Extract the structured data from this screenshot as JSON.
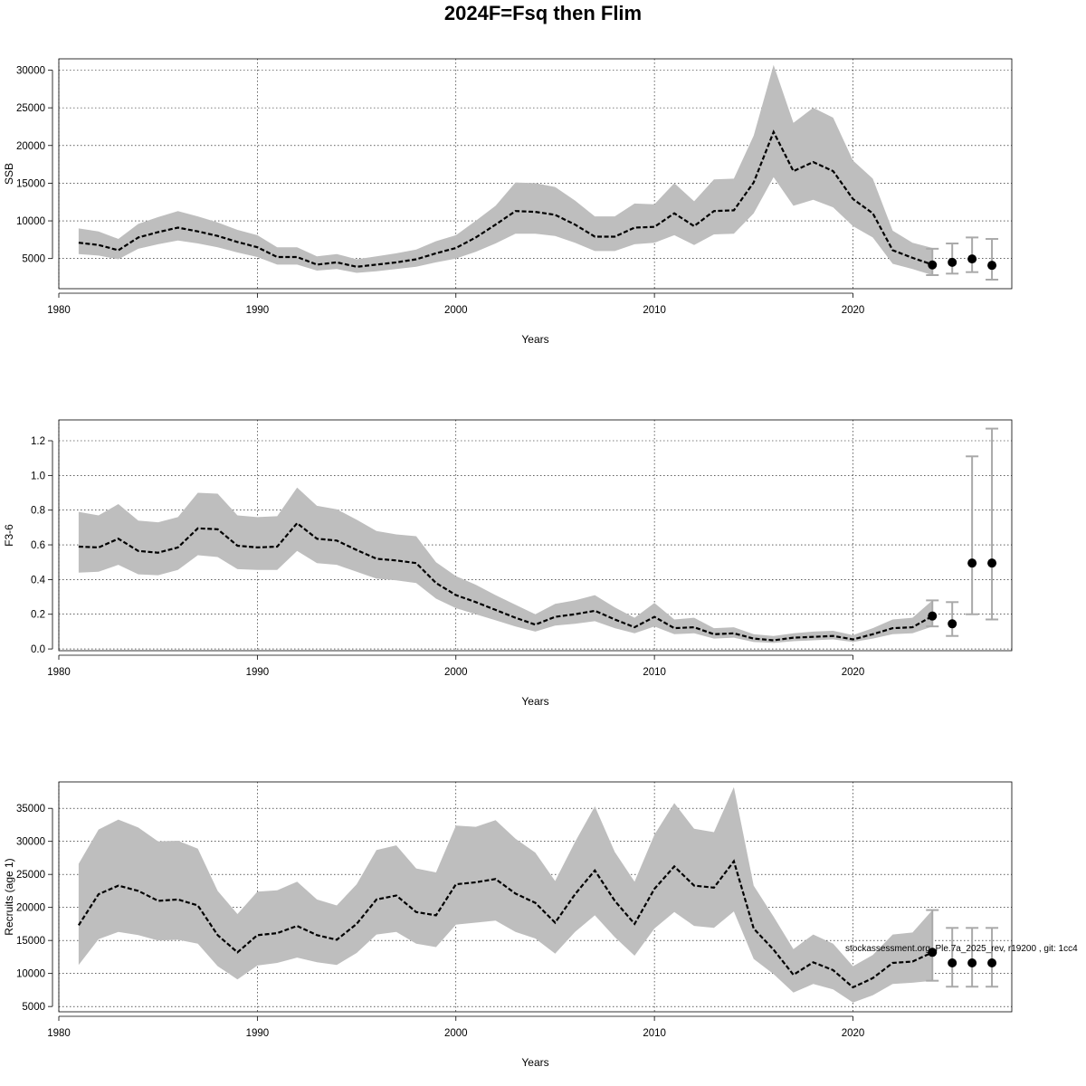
{
  "title": "2024F=Fsq then Flim",
  "footnote": "stockassessment.org, Ple.7a_2025_rev, r19200 , git: 1cc4",
  "chart_data": [
    {
      "type": "line",
      "ylabel": "SSB",
      "xlabel": "Years",
      "xlim": [
        1980,
        2028
      ],
      "ylim": [
        1000,
        31500
      ],
      "xticks": [
        1980,
        1990,
        2000,
        2010,
        2020
      ],
      "yticks": [
        5000,
        10000,
        15000,
        20000,
        25000,
        30000
      ],
      "grid": true,
      "x": [
        1981,
        1982,
        1983,
        1984,
        1985,
        1986,
        1987,
        1988,
        1989,
        1990,
        1991,
        1992,
        1993,
        1994,
        1995,
        1996,
        1997,
        1998,
        1999,
        2000,
        2001,
        2002,
        2003,
        2004,
        2005,
        2006,
        2007,
        2008,
        2009,
        2010,
        2011,
        2012,
        2013,
        2014,
        2015,
        2016,
        2017,
        2018,
        2019,
        2020,
        2021,
        2022,
        2023,
        2024
      ],
      "estimate": [
        7100,
        6800,
        6100,
        7800,
        8500,
        9100,
        8600,
        8000,
        7200,
        6500,
        5200,
        5200,
        4200,
        4500,
        3900,
        4200,
        4500,
        4900,
        5700,
        6400,
        7800,
        9500,
        11300,
        11200,
        10800,
        9500,
        7900,
        7900,
        9100,
        9200,
        11000,
        9300,
        11300,
        11400,
        15100,
        21800,
        16600,
        17800,
        16600,
        12900,
        11000,
        6100,
        5100,
        4200
      ],
      "lower": [
        5600,
        5400,
        4900,
        6300,
        6900,
        7400,
        7000,
        6500,
        5800,
        5200,
        4200,
        4200,
        3400,
        3600,
        3100,
        3300,
        3600,
        3900,
        4500,
        5000,
        5900,
        7000,
        8300,
        8300,
        8000,
        7100,
        6000,
        6000,
        6900,
        7100,
        8100,
        6800,
        8200,
        8300,
        11000,
        15800,
        12000,
        12800,
        11800,
        9300,
        7800,
        4300,
        3600,
        2800
      ],
      "upper": [
        9000,
        8600,
        7600,
        9600,
        10500,
        11300,
        10600,
        9800,
        8800,
        8100,
        6500,
        6500,
        5300,
        5600,
        4900,
        5300,
        5700,
        6200,
        7300,
        8100,
        10000,
        12000,
        15100,
        15000,
        14500,
        12700,
        10600,
        10600,
        12300,
        12200,
        15000,
        12600,
        15500,
        15600,
        21300,
        30700,
        23000,
        25000,
        23700,
        18000,
        15600,
        8700,
        7100,
        6400
      ],
      "forecast": {
        "x": [
          2024,
          2025,
          2026,
          2027
        ],
        "median": [
          4150,
          4500,
          4950,
          4100
        ],
        "low": [
          2800,
          3000,
          3200,
          2200
        ],
        "high": [
          6300,
          7000,
          7800,
          7600
        ]
      }
    },
    {
      "type": "line",
      "ylabel": "F3-6",
      "xlabel": "Years",
      "xlim": [
        1980,
        2028
      ],
      "ylim": [
        -0.01,
        1.32
      ],
      "xticks": [
        1980,
        1990,
        2000,
        2010,
        2020
      ],
      "yticks": [
        0.0,
        0.2,
        0.4,
        0.6,
        0.8,
        1.0,
        1.2
      ],
      "yticklabels": [
        "0.0",
        "0.2",
        "0.4",
        "0.6",
        "0.8",
        "1.0",
        "1.2"
      ],
      "grid": true,
      "x": [
        1981,
        1982,
        1983,
        1984,
        1985,
        1986,
        1987,
        1988,
        1989,
        1990,
        1991,
        1992,
        1993,
        1994,
        1995,
        1996,
        1997,
        1998,
        1999,
        2000,
        2001,
        2002,
        2003,
        2004,
        2005,
        2006,
        2007,
        2008,
        2009,
        2010,
        2011,
        2012,
        2013,
        2014,
        2015,
        2016,
        2017,
        2018,
        2019,
        2020,
        2021,
        2022,
        2023,
        2024
      ],
      "estimate": [
        0.59,
        0.585,
        0.635,
        0.565,
        0.555,
        0.585,
        0.695,
        0.69,
        0.595,
        0.585,
        0.59,
        0.725,
        0.635,
        0.625,
        0.57,
        0.52,
        0.51,
        0.495,
        0.38,
        0.31,
        0.27,
        0.225,
        0.18,
        0.14,
        0.185,
        0.2,
        0.22,
        0.17,
        0.125,
        0.185,
        0.12,
        0.125,
        0.085,
        0.09,
        0.06,
        0.05,
        0.065,
        0.07,
        0.075,
        0.055,
        0.085,
        0.12,
        0.125,
        0.19
      ],
      "lower": [
        0.44,
        0.445,
        0.485,
        0.43,
        0.425,
        0.455,
        0.54,
        0.53,
        0.46,
        0.455,
        0.455,
        0.565,
        0.495,
        0.485,
        0.445,
        0.405,
        0.395,
        0.38,
        0.29,
        0.235,
        0.2,
        0.165,
        0.13,
        0.1,
        0.135,
        0.145,
        0.16,
        0.12,
        0.09,
        0.13,
        0.085,
        0.09,
        0.06,
        0.065,
        0.04,
        0.035,
        0.045,
        0.05,
        0.055,
        0.04,
        0.06,
        0.085,
        0.09,
        0.13
      ],
      "upper": [
        0.79,
        0.77,
        0.835,
        0.74,
        0.73,
        0.76,
        0.9,
        0.895,
        0.77,
        0.76,
        0.765,
        0.93,
        0.825,
        0.805,
        0.745,
        0.68,
        0.66,
        0.65,
        0.5,
        0.42,
        0.37,
        0.31,
        0.255,
        0.2,
        0.26,
        0.28,
        0.31,
        0.24,
        0.18,
        0.265,
        0.17,
        0.18,
        0.12,
        0.125,
        0.085,
        0.075,
        0.09,
        0.1,
        0.105,
        0.08,
        0.12,
        0.17,
        0.18,
        0.28
      ],
      "forecast": {
        "x": [
          2024,
          2025,
          2026,
          2027
        ],
        "median": [
          0.19,
          0.145,
          0.495,
          0.495
        ],
        "low": [
          0.13,
          0.075,
          0.2,
          0.17
        ],
        "high": [
          0.28,
          0.27,
          1.11,
          1.27
        ]
      }
    },
    {
      "type": "line",
      "ylabel": "Recruits (age 1)",
      "xlabel": "Years",
      "xlim": [
        1980,
        2028
      ],
      "ylim": [
        4200,
        39000
      ],
      "xticks": [
        1980,
        1990,
        2000,
        2010,
        2020
      ],
      "yticks": [
        5000,
        10000,
        15000,
        20000,
        25000,
        30000,
        35000
      ],
      "grid": true,
      "x": [
        1981,
        1982,
        1983,
        1984,
        1985,
        1986,
        1987,
        1988,
        1989,
        1990,
        1991,
        1992,
        1993,
        1994,
        1995,
        1996,
        1997,
        1998,
        1999,
        2000,
        2001,
        2002,
        2003,
        2004,
        2005,
        2006,
        2007,
        2008,
        2009,
        2010,
        2011,
        2012,
        2013,
        2014,
        2015,
        2016,
        2017,
        2018,
        2019,
        2020,
        2021,
        2022,
        2023,
        2024
      ],
      "estimate": [
        17300,
        22000,
        23300,
        22500,
        21000,
        21200,
        20300,
        15800,
        13200,
        15800,
        16100,
        17200,
        15800,
        15100,
        17500,
        21200,
        21800,
        19300,
        18800,
        23500,
        23800,
        24300,
        22100,
        20700,
        17700,
        22000,
        25600,
        21000,
        17500,
        22800,
        26200,
        23300,
        23000,
        27000,
        16800,
        13600,
        9800,
        11700,
        10500,
        7900,
        9300,
        11600,
        11800,
        13200
      ],
      "lower": [
        11300,
        15200,
        16300,
        15800,
        15000,
        15100,
        14500,
        11100,
        9100,
        11200,
        11600,
        12400,
        11700,
        11300,
        13100,
        15900,
        16300,
        14500,
        14000,
        17400,
        17700,
        18000,
        16300,
        15300,
        13000,
        16300,
        18800,
        15500,
        12700,
        16800,
        19300,
        17200,
        16900,
        19400,
        12200,
        9900,
        7100,
        8400,
        7600,
        5600,
        6700,
        8400,
        8600,
        8900
      ],
      "upper": [
        26600,
        31800,
        33300,
        32100,
        30000,
        30100,
        28900,
        22500,
        19000,
        22400,
        22600,
        23900,
        21200,
        20300,
        23500,
        28700,
        29400,
        25900,
        25300,
        32400,
        32200,
        33200,
        30400,
        28300,
        24000,
        29900,
        35300,
        28400,
        23900,
        31000,
        35800,
        31900,
        31400,
        38200,
        23300,
        18600,
        13700,
        15900,
        14500,
        11100,
        12800,
        15900,
        16200,
        19600
      ],
      "forecast": {
        "x": [
          2024,
          2025,
          2026,
          2027
        ],
        "median": [
          13200,
          11600,
          11600,
          11600
        ],
        "low": [
          8900,
          8000,
          8000,
          8000
        ],
        "high": [
          19600,
          16900,
          16900,
          16900
        ]
      }
    }
  ]
}
